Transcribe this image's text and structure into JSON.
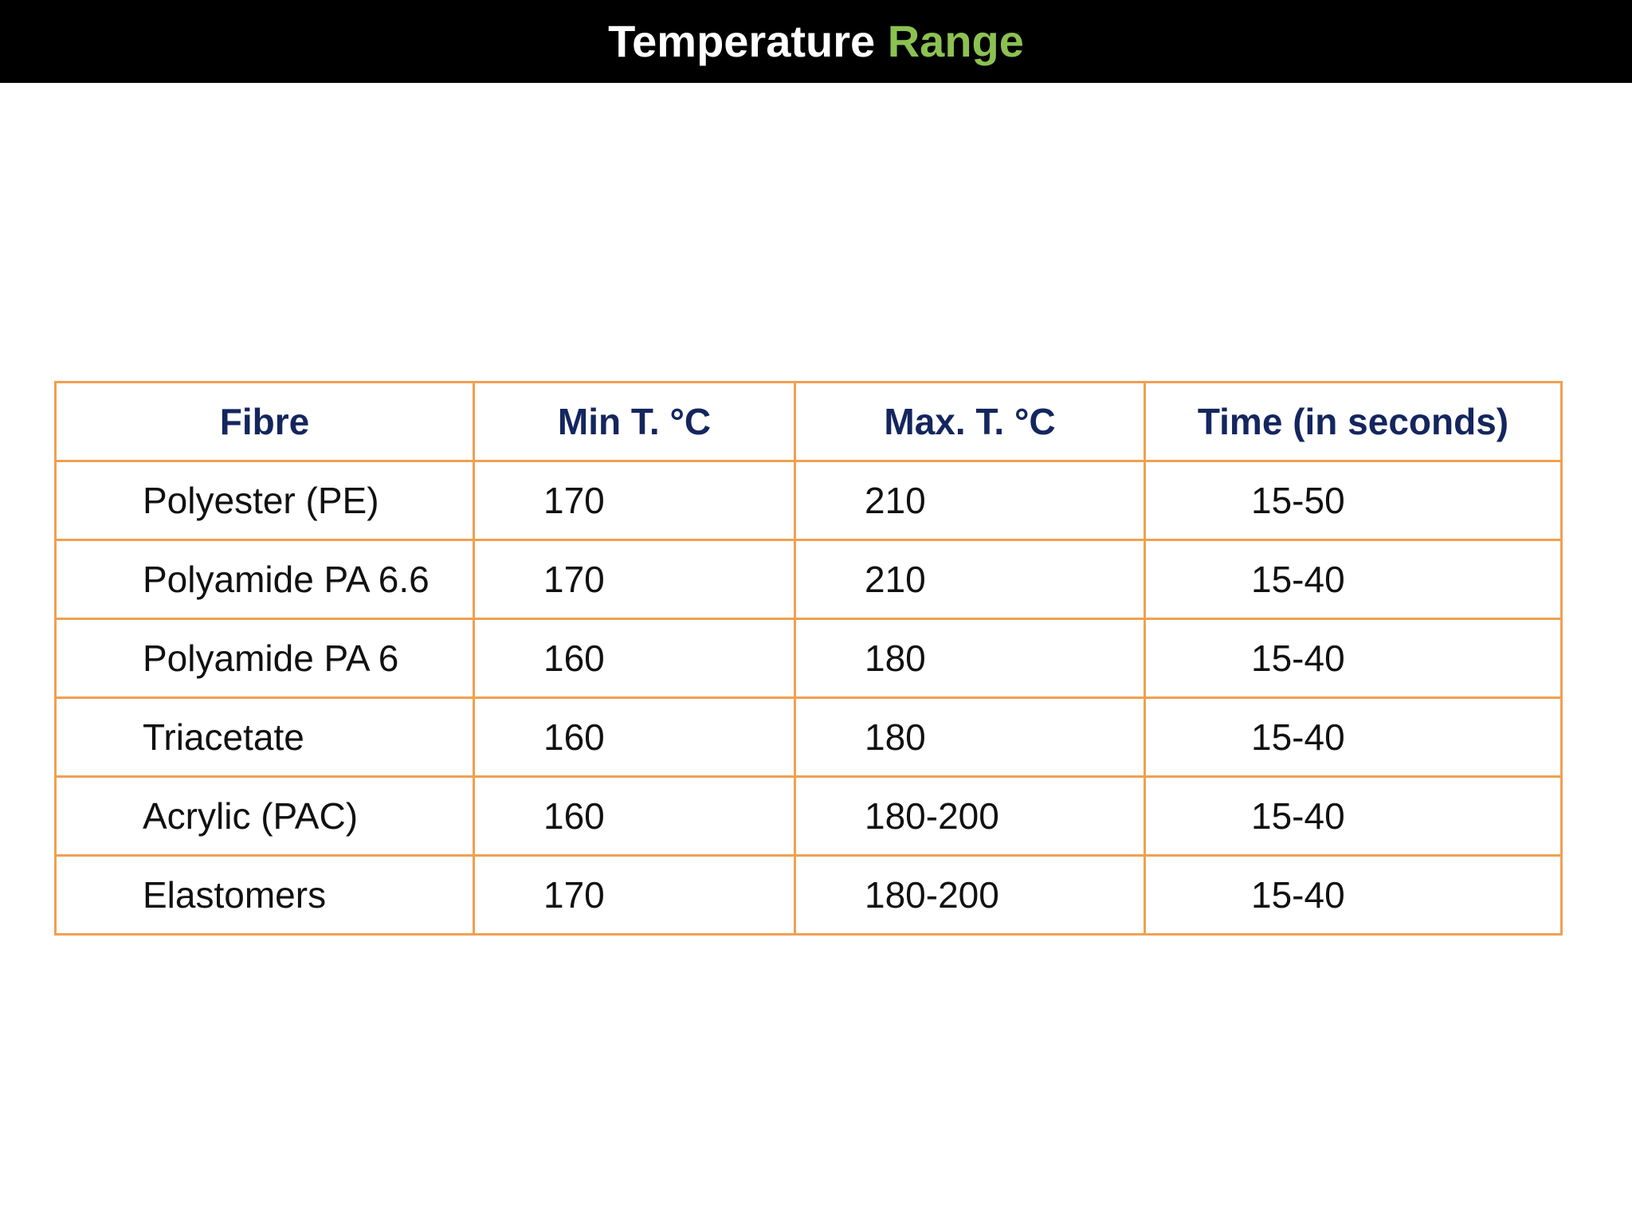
{
  "header": {
    "title": "Temperature",
    "title_highlight": "Range"
  },
  "table": {
    "columns": [
      "Fibre",
      "Min T. °C",
      "Max. T. °C",
      "Time (in seconds)"
    ],
    "rows": [
      [
        "Polyester (PE)",
        "170",
        "210",
        "15-50"
      ],
      [
        "Polyamide PA 6.6",
        "170",
        "210",
        "15-40"
      ],
      [
        "Polyamide PA 6",
        "160",
        "180",
        "15-40"
      ],
      [
        "Triacetate",
        "160",
        "180",
        "15-40"
      ],
      [
        "Acrylic (PAC)",
        "160",
        "180-200",
        "15-40"
      ],
      [
        "Elastomers",
        "170",
        "180-200",
        "15-40"
      ]
    ]
  }
}
